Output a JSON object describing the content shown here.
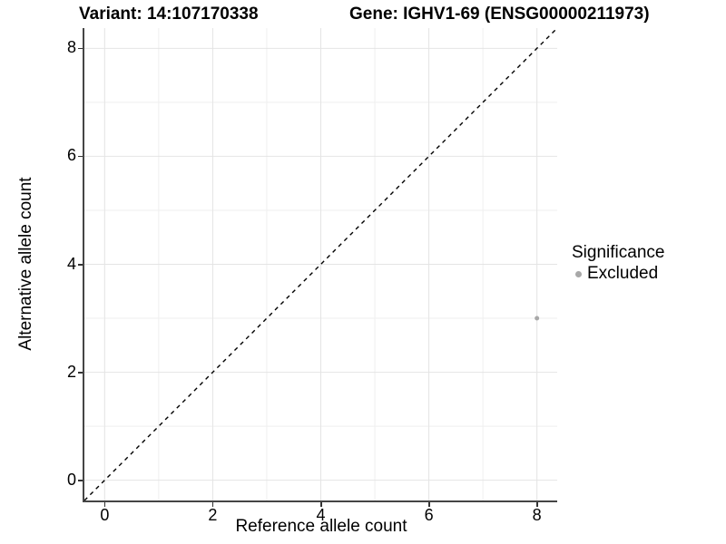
{
  "titles": {
    "variant": "Variant: 14:107170338",
    "gene": "Gene: IGHV1-69 (ENSG00000211973)"
  },
  "chart_data": {
    "type": "scatter",
    "xlabel": "Reference allele count",
    "ylabel": "Alternative allele count",
    "xlim": [
      -0.375,
      8.375
    ],
    "ylim": [
      -0.375,
      8.375
    ],
    "x_ticks": [
      0,
      2,
      4,
      6,
      8
    ],
    "y_ticks": [
      0,
      2,
      4,
      6,
      8
    ],
    "x_minor_ticks": [
      1,
      3,
      5,
      7
    ],
    "y_minor_ticks": [
      1,
      3,
      5,
      7
    ],
    "grid": true,
    "series": [
      {
        "name": "Excluded",
        "color": "#a8a8a8",
        "points": [
          {
            "x": 8,
            "y": 3
          }
        ]
      }
    ],
    "reference_line": {
      "type": "identity",
      "slope": 1,
      "intercept": 0,
      "style": "dashed",
      "color": "#000000"
    },
    "legend": {
      "title": "Significance",
      "position": "right",
      "items": [
        {
          "label": "Excluded",
          "color": "#a8a8a8",
          "marker": "circle"
        }
      ]
    }
  },
  "colors": {
    "background": "#ffffff",
    "grid_major": "#e4e4e4",
    "grid_minor": "#efefef",
    "axis_line": "#454545",
    "tick_mark": "#333333",
    "point": "#a8a8a8",
    "text": "#000000"
  }
}
